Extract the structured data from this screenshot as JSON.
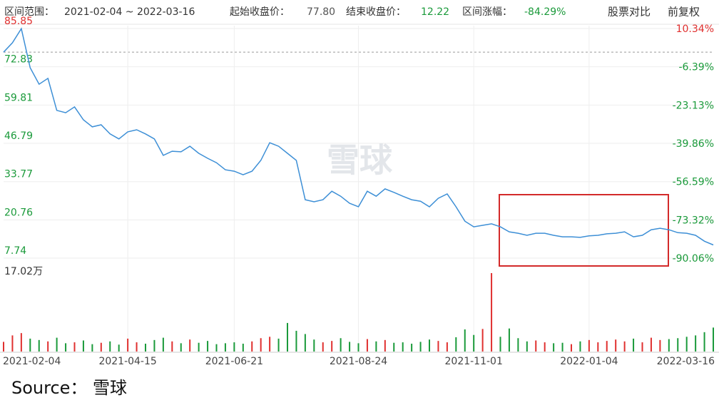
{
  "header": {
    "range_label": "区间范围：",
    "range_value": "2021-02-04 ~ 2022-03-16",
    "start_label": "起始收盘价：",
    "start_value": "77.80",
    "end_label": "结束收盘价：",
    "end_value": "12.22",
    "change_label": "区间涨幅：",
    "change_value": "-84.29%",
    "compare": "股票对比",
    "adjust": "前复权"
  },
  "chart_data": {
    "type": "line",
    "color": "#3d8fd6",
    "grid": true,
    "up_color": "#e0302f",
    "down_color": "#1a9a3a",
    "reference": 77.8,
    "categories": [
      "2021-02-04",
      null,
      null,
      null,
      null,
      null,
      null,
      null,
      null,
      null,
      null,
      null,
      null,
      null,
      "2021-04-15",
      null,
      null,
      null,
      null,
      null,
      null,
      null,
      null,
      null,
      null,
      null,
      "2021-06-21",
      null,
      null,
      null,
      null,
      null,
      null,
      null,
      null,
      null,
      null,
      null,
      null,
      null,
      "2021-08-24",
      null,
      null,
      null,
      null,
      null,
      null,
      null,
      null,
      null,
      null,
      null,
      null,
      "2021-11-01",
      null,
      null,
      null,
      null,
      null,
      null,
      null,
      null,
      null,
      null,
      null,
      null,
      "2022-01-04",
      null,
      null,
      null,
      null,
      null,
      null,
      null,
      null,
      null,
      null,
      null,
      null,
      null,
      "2022-03-16"
    ],
    "values": [
      77.8,
      81.0,
      85.8,
      72.5,
      66.9,
      68.9,
      58.0,
      57.2,
      59.2,
      54.8,
      52.4,
      53.1,
      50.0,
      48.3,
      50.7,
      51.4,
      50.0,
      48.3,
      42.7,
      44.1,
      43.9,
      45.8,
      43.4,
      41.7,
      40.2,
      37.8,
      37.3,
      36.1,
      37.3,
      41.0,
      47.0,
      45.8,
      43.4,
      41.0,
      27.6,
      26.9,
      27.6,
      30.5,
      28.8,
      26.4,
      25.2,
      30.5,
      28.8,
      31.3,
      30.1,
      28.8,
      27.6,
      27.1,
      25.2,
      28.1,
      29.6,
      25.2,
      20.3,
      18.4,
      18.9,
      19.4,
      18.4,
      16.7,
      16.2,
      15.5,
      16.2,
      16.2,
      15.5,
      15.0,
      15.0,
      14.8,
      15.3,
      15.5,
      16.0,
      16.2,
      16.7,
      15.0,
      15.5,
      17.4,
      17.9,
      17.4,
      16.4,
      16.2,
      15.5,
      13.5,
      12.22
    ],
    "ylim": [
      7.74,
      85.85
    ],
    "yticks": [
      7.74,
      20.76,
      33.77,
      46.79,
      59.81,
      72.83,
      85.85
    ],
    "y2lim": [
      -90.06,
      10.34
    ],
    "y2ticks": [
      {
        "value": -90.06,
        "label": "-90.06%"
      },
      {
        "value": -73.32,
        "label": "-73.32%"
      },
      {
        "value": -56.59,
        "label": "-56.59%"
      },
      {
        "value": -39.86,
        "label": "-39.86%"
      },
      {
        "value": -23.13,
        "label": "-23.13%"
      },
      {
        "value": -6.39,
        "label": "-6.39%"
      },
      {
        "value": 10.34,
        "label": "10.34%"
      }
    ],
    "volume": {
      "max": {
        "value": 17.02,
        "label": "17.02万"
      },
      "values": [
        2.1,
        3.5,
        4.0,
        2.8,
        2.5,
        2.2,
        3.0,
        1.8,
        2.0,
        2.4,
        1.6,
        1.9,
        2.2,
        1.5,
        2.8,
        2.0,
        1.7,
        2.5,
        3.0,
        2.2,
        1.8,
        2.6,
        1.9,
        2.3,
        1.6,
        1.8,
        2.0,
        1.7,
        2.2,
        2.9,
        3.2,
        2.8,
        6.2,
        4.5,
        3.8,
        2.6,
        2.0,
        2.3,
        2.9,
        2.1,
        1.8,
        2.7,
        2.2,
        2.5,
        1.9,
        2.0,
        1.7,
        2.1,
        2.6,
        2.3,
        2.0,
        3.1,
        4.8,
        3.6,
        4.9,
        17.02,
        3.2,
        5.0,
        2.9,
        2.2,
        2.4,
        2.0,
        1.8,
        1.9,
        1.6,
        2.2,
        2.5,
        2.0,
        2.3,
        2.6,
        2.2,
        2.8,
        2.0,
        3.0,
        2.5,
        2.7,
        2.9,
        3.2,
        3.5,
        4.2,
        5.2
      ]
    },
    "watermark": "雪球"
  },
  "source": "Source：  雪球"
}
